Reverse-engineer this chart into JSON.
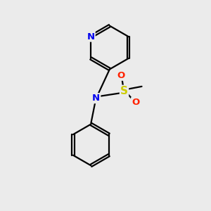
{
  "background_color": "#ebebeb",
  "atom_colors": {
    "N": "#0000ee",
    "O": "#ff2200",
    "S": "#cccc00",
    "C": "#000000"
  },
  "line_color": "#000000",
  "line_width": 1.6,
  "font_size_atoms": 9.5,
  "figsize": [
    3.0,
    3.0
  ],
  "dpi": 100
}
